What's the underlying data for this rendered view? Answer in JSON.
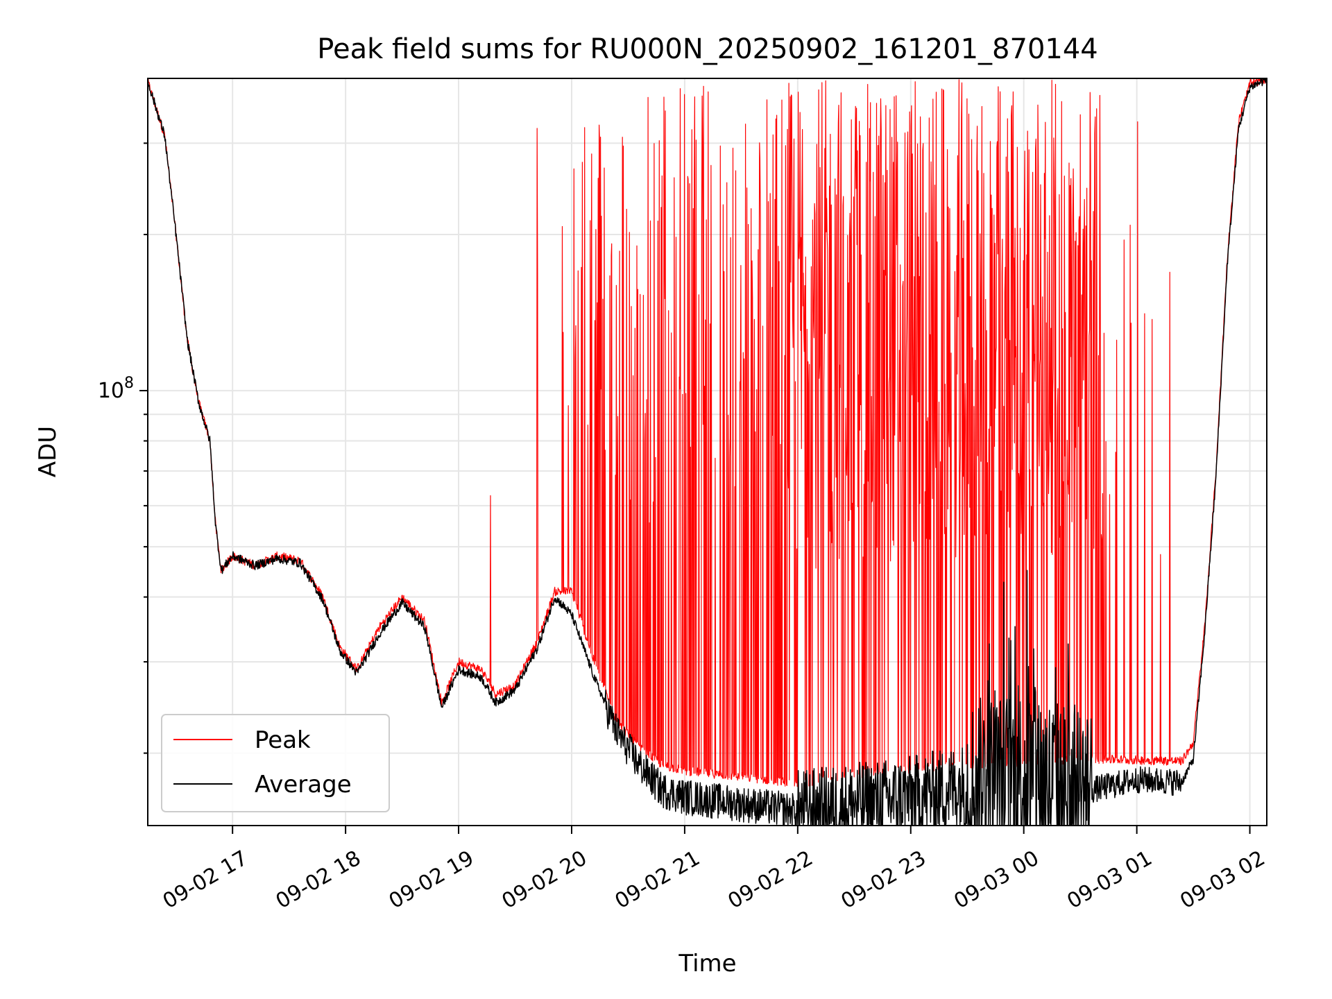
{
  "chart_data": {
    "type": "line",
    "title": "Peak field sums for RU000N_20250902_161201_870144",
    "xlabel": "Time",
    "ylabel": "ADU",
    "y_scale": "log",
    "x_ticks": [
      "09-02 17",
      "09-02 18",
      "09-02 19",
      "09-02 20",
      "09-02 21",
      "09-02 22",
      "09-02 23",
      "09-03 00",
      "09-03 01",
      "09-03 02"
    ],
    "y_tick_label": {
      "base": "10",
      "exp": "8"
    },
    "grid": true,
    "legend": "lower-left",
    "x_range_hours": [
      16.25,
      26.15
    ],
    "ylim": [
      14500000,
      400000000
    ],
    "series": [
      {
        "name": "Peak",
        "color": "#ff0000",
        "note": "values approximate; envelope spikes up to top of axis after ~21:00",
        "points": [
          [
            16.25,
            395000000
          ],
          [
            16.4,
            310000000
          ],
          [
            16.5,
            200000000
          ],
          [
            16.6,
            125000000
          ],
          [
            16.7,
            95000000
          ],
          [
            16.8,
            80000000
          ],
          [
            16.85,
            55000000
          ],
          [
            16.9,
            45000000
          ],
          [
            17.0,
            48000000
          ],
          [
            17.2,
            46000000
          ],
          [
            17.4,
            48000000
          ],
          [
            17.6,
            47000000
          ],
          [
            17.8,
            40000000
          ],
          [
            17.95,
            32000000
          ],
          [
            18.1,
            29000000
          ],
          [
            18.3,
            35000000
          ],
          [
            18.5,
            40000000
          ],
          [
            18.7,
            36000000
          ],
          [
            18.85,
            25000000
          ],
          [
            19.0,
            30000000
          ],
          [
            19.2,
            29000000
          ],
          [
            19.33,
            26000000
          ],
          [
            19.5,
            27000000
          ],
          [
            19.7,
            33000000
          ],
          [
            19.85,
            41000000
          ],
          [
            20.0,
            41000000
          ],
          [
            20.2,
            30000000
          ],
          [
            20.4,
            23000000
          ],
          [
            20.6,
            20500000
          ],
          [
            20.8,
            19000000
          ],
          [
            21.0,
            18500000
          ],
          [
            21.5,
            18000000
          ],
          [
            22.0,
            17500000
          ],
          [
            22.5,
            18200000
          ],
          [
            23.0,
            18600000
          ],
          [
            23.5,
            19000000
          ],
          [
            24.0,
            19200000
          ],
          [
            24.5,
            19500000
          ],
          [
            25.0,
            19400000
          ],
          [
            25.4,
            19300000
          ],
          [
            25.5,
            21000000
          ],
          [
            25.6,
            35000000
          ],
          [
            25.7,
            70000000
          ],
          [
            25.8,
            180000000
          ],
          [
            25.9,
            330000000
          ],
          [
            26.0,
            390000000
          ],
          [
            26.15,
            400000000
          ]
        ]
      },
      {
        "name": "Average",
        "color": "#000000",
        "note": "values approximate; noisy band after ~22:00",
        "points": [
          [
            16.25,
            395000000
          ],
          [
            16.4,
            310000000
          ],
          [
            16.5,
            200000000
          ],
          [
            16.6,
            125000000
          ],
          [
            16.7,
            95000000
          ],
          [
            16.8,
            80000000
          ],
          [
            16.85,
            55000000
          ],
          [
            16.9,
            45000000
          ],
          [
            17.0,
            48000000
          ],
          [
            17.2,
            46000000
          ],
          [
            17.4,
            47500000
          ],
          [
            17.6,
            46500000
          ],
          [
            17.8,
            39500000
          ],
          [
            17.95,
            31500000
          ],
          [
            18.1,
            28500000
          ],
          [
            18.3,
            34000000
          ],
          [
            18.5,
            39000000
          ],
          [
            18.7,
            35000000
          ],
          [
            18.85,
            24500000
          ],
          [
            19.0,
            29000000
          ],
          [
            19.2,
            28000000
          ],
          [
            19.33,
            25000000
          ],
          [
            19.5,
            26500000
          ],
          [
            19.7,
            32000000
          ],
          [
            19.85,
            40000000
          ],
          [
            20.0,
            37000000
          ],
          [
            20.2,
            28000000
          ],
          [
            20.4,
            22000000
          ],
          [
            20.6,
            19000000
          ],
          [
            20.8,
            17000000
          ],
          [
            21.0,
            16500000
          ],
          [
            21.5,
            16000000
          ],
          [
            22.0,
            15500000
          ],
          [
            22.5,
            16000000
          ],
          [
            23.0,
            16500000
          ],
          [
            23.5,
            17500000
          ],
          [
            24.0,
            18500000
          ],
          [
            24.3,
            17500000
          ],
          [
            24.6,
            17000000
          ],
          [
            25.0,
            17800000
          ],
          [
            25.4,
            17600000
          ],
          [
            25.5,
            19500000
          ],
          [
            25.6,
            34000000
          ],
          [
            25.7,
            68000000
          ],
          [
            25.8,
            175000000
          ],
          [
            25.9,
            320000000
          ],
          [
            26.0,
            385000000
          ],
          [
            26.15,
            398000000
          ]
        ]
      }
    ]
  }
}
